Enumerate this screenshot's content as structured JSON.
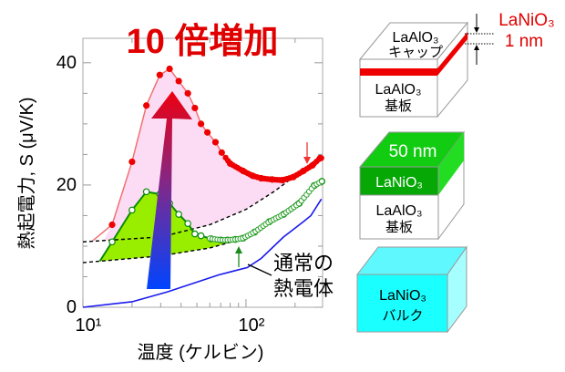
{
  "chart_data": {
    "type": "line",
    "title": "10 倍増加",
    "xlabel": "温度 (ケルビン)",
    "ylabel": "熱起電力, S (μV/K)",
    "x_scale": "log",
    "xlim": [
      10,
      295
    ],
    "ylim": [
      0,
      44
    ],
    "x_ticks": [
      {
        "value": 10,
        "label": "10¹"
      },
      {
        "value": 100,
        "label": "10²"
      }
    ],
    "y_ticks": [
      {
        "value": 0,
        "label": "0"
      },
      {
        "value": 20,
        "label": "20"
      },
      {
        "value": 40,
        "label": "40"
      }
    ],
    "grid": false,
    "annotation": "通常の熱電体",
    "series": [
      {
        "color": "#ee0000",
        "marker": "filled-circle",
        "fill": "#fcdcf4",
        "x": [
          15.1,
          20,
          24.5,
          29.6,
          34,
          38.7,
          44,
          48.6,
          53,
          58,
          65,
          71,
          80,
          96,
          110,
          124,
          145,
          167,
          195,
          225,
          255,
          285
        ],
        "y": [
          13.5,
          23.8,
          33,
          38,
          39,
          37,
          35,
          32.6,
          30,
          28.6,
          27,
          25.3,
          23.5,
          22.3,
          21.5,
          21.1,
          20.9,
          20.8,
          21.3,
          22.3,
          23.2,
          24.4
        ]
      },
      {
        "color": "#0a8a0a",
        "marker": "open-circle",
        "fill": "#99ee00",
        "x": [
          15.1,
          20,
          24.5,
          29.6,
          34,
          38.7,
          44,
          48.6,
          53,
          61,
          70,
          77,
          86,
          96,
          113,
          139,
          170,
          212,
          262,
          292
        ],
        "y": [
          10.7,
          15.9,
          18.9,
          18.5,
          17,
          15.2,
          13.7,
          12,
          11.7,
          11.2,
          11,
          11,
          11.1,
          11.3,
          12.3,
          14,
          15.2,
          17,
          19.9,
          20.6
        ]
      },
      {
        "color": "#1a1aee",
        "marker": "none",
        "x": [
          10,
          20,
          32.8,
          68,
          102,
          124,
          170,
          225,
          250,
          290
        ],
        "y": [
          0,
          0.9,
          2.5,
          5.3,
          6.5,
          8,
          11.5,
          14,
          15,
          17.7
        ]
      },
      {
        "color": "#000000",
        "style": "dashed",
        "x": [
          10,
          30,
          60,
          100,
          150,
          200,
          295
        ],
        "y": [
          10.7,
          11.5,
          13.5,
          16,
          19,
          21.5,
          24.5
        ]
      },
      {
        "color": "#000000",
        "style": "dashed",
        "x": [
          10,
          30,
          60,
          90,
          150,
          200,
          295
        ],
        "y": [
          7.3,
          8.4,
          9.7,
          11,
          14.5,
          17,
          20.6
        ]
      }
    ]
  },
  "diagram": {
    "box_cap": {
      "top_label_1": "LaAlO₃",
      "top_label_2": "キャップ",
      "front_label_1": "LaAlO₃",
      "front_label_2": "基板",
      "layer_color": "#ee0000"
    },
    "thickness_label_1": "LaNiO₃",
    "thickness_label_2": "1 nm",
    "box_film": {
      "top_label": "50 nm",
      "layer_label": "LaNiO₃",
      "front_label_1": "LaAlO₃",
      "front_label_2": "基板",
      "layer_color": "#11cc11"
    },
    "box_bulk": {
      "front_label_1": "LaNiO₃",
      "front_label_2": "バルク",
      "color": "#1affff"
    }
  }
}
